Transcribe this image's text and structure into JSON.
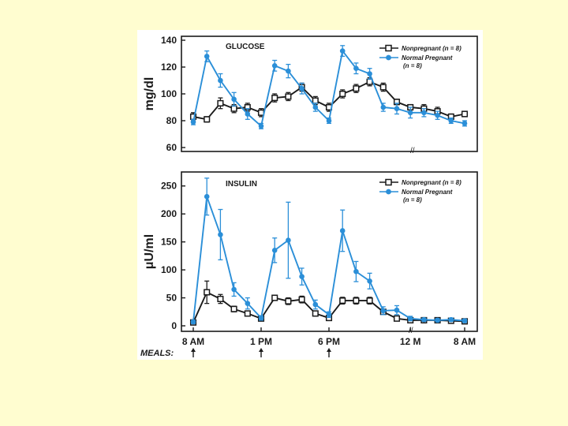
{
  "colors": {
    "background": "#fffdd0",
    "nonpregnant": "#1a1a1a",
    "pregnant": "#2b8fd8",
    "frame": "#1a1a1a"
  },
  "meals_label": "MEALS:",
  "chart_data": [
    {
      "type": "line",
      "title": "GLUCOSE",
      "ylabel": "mg/dl",
      "ylim": [
        60,
        140
      ],
      "yticks": [
        "140",
        "120",
        "100",
        "80",
        "60"
      ],
      "yticks_values": [
        140,
        120,
        100,
        80,
        60
      ],
      "x": [
        0,
        1,
        2,
        3,
        4,
        5,
        6,
        7,
        8,
        9,
        10,
        11,
        12,
        13,
        14,
        15,
        16,
        17,
        18,
        19,
        20
      ],
      "series": [
        {
          "name": "Nonpregnant",
          "legend": [
            "Nonpregnant (n = 8)"
          ],
          "values": [
            83,
            81,
            93,
            89,
            90,
            86,
            97,
            98,
            105,
            95,
            90,
            100,
            104,
            109,
            105,
            94,
            90,
            89,
            87,
            83,
            85
          ],
          "errors": [
            3,
            2,
            4,
            3,
            3,
            3,
            3,
            3,
            3,
            3,
            3,
            3,
            3,
            3,
            3,
            2,
            2,
            3,
            3,
            2,
            2
          ]
        },
        {
          "name": "Normal Pregnant",
          "legend": [
            "Normal Pregnant",
            "(n = 8)"
          ],
          "values": [
            79,
            128,
            110,
            96,
            85,
            76,
            121,
            117,
            104,
            90,
            80,
            132,
            119,
            115,
            90,
            89,
            86,
            86,
            84,
            80,
            78
          ],
          "errors": [
            2,
            4,
            5,
            5,
            4,
            2,
            4,
            5,
            4,
            3,
            2,
            4,
            4,
            4,
            3,
            4,
            4,
            3,
            3,
            2,
            2
          ]
        }
      ]
    },
    {
      "type": "line",
      "title": "INSULIN",
      "ylabel": "μU/ml",
      "ylim": [
        0,
        275
      ],
      "yticks": [
        "250",
        "200",
        "150",
        "100",
        "50",
        "0"
      ],
      "yticks_values": [
        250,
        200,
        150,
        100,
        50,
        0
      ],
      "xticks": [
        "8 AM",
        "1 PM",
        "6 PM",
        "12 M",
        "8 AM"
      ],
      "xticks_positions": [
        0,
        5,
        10,
        16,
        20
      ],
      "meal_times": [
        0,
        5,
        10
      ],
      "x": [
        0,
        1,
        2,
        3,
        4,
        5,
        6,
        7,
        8,
        9,
        10,
        11,
        12,
        13,
        14,
        15,
        16,
        17,
        18,
        19,
        20
      ],
      "series": [
        {
          "name": "Nonpregnant",
          "legend": [
            "Nonpregnant (n = 8)"
          ],
          "values": [
            6,
            60,
            48,
            30,
            22,
            13,
            50,
            44,
            47,
            22,
            14,
            45,
            45,
            45,
            25,
            13,
            10,
            10,
            10,
            9,
            8
          ],
          "errors": [
            3,
            20,
            8,
            5,
            4,
            3,
            4,
            6,
            6,
            4,
            3,
            6,
            6,
            6,
            4,
            3,
            3,
            3,
            3,
            3,
            3
          ]
        },
        {
          "name": "Normal Pregnant",
          "legend": [
            "Normal Pregnant",
            "(n = 8)"
          ],
          "values": [
            7,
            231,
            163,
            65,
            40,
            14,
            135,
            153,
            88,
            38,
            20,
            170,
            97,
            80,
            27,
            28,
            13,
            11,
            10,
            11,
            9
          ],
          "errors": [
            3,
            33,
            45,
            12,
            10,
            4,
            22,
            68,
            15,
            8,
            5,
            37,
            18,
            14,
            7,
            8,
            4,
            3,
            3,
            3,
            3
          ]
        }
      ]
    }
  ]
}
